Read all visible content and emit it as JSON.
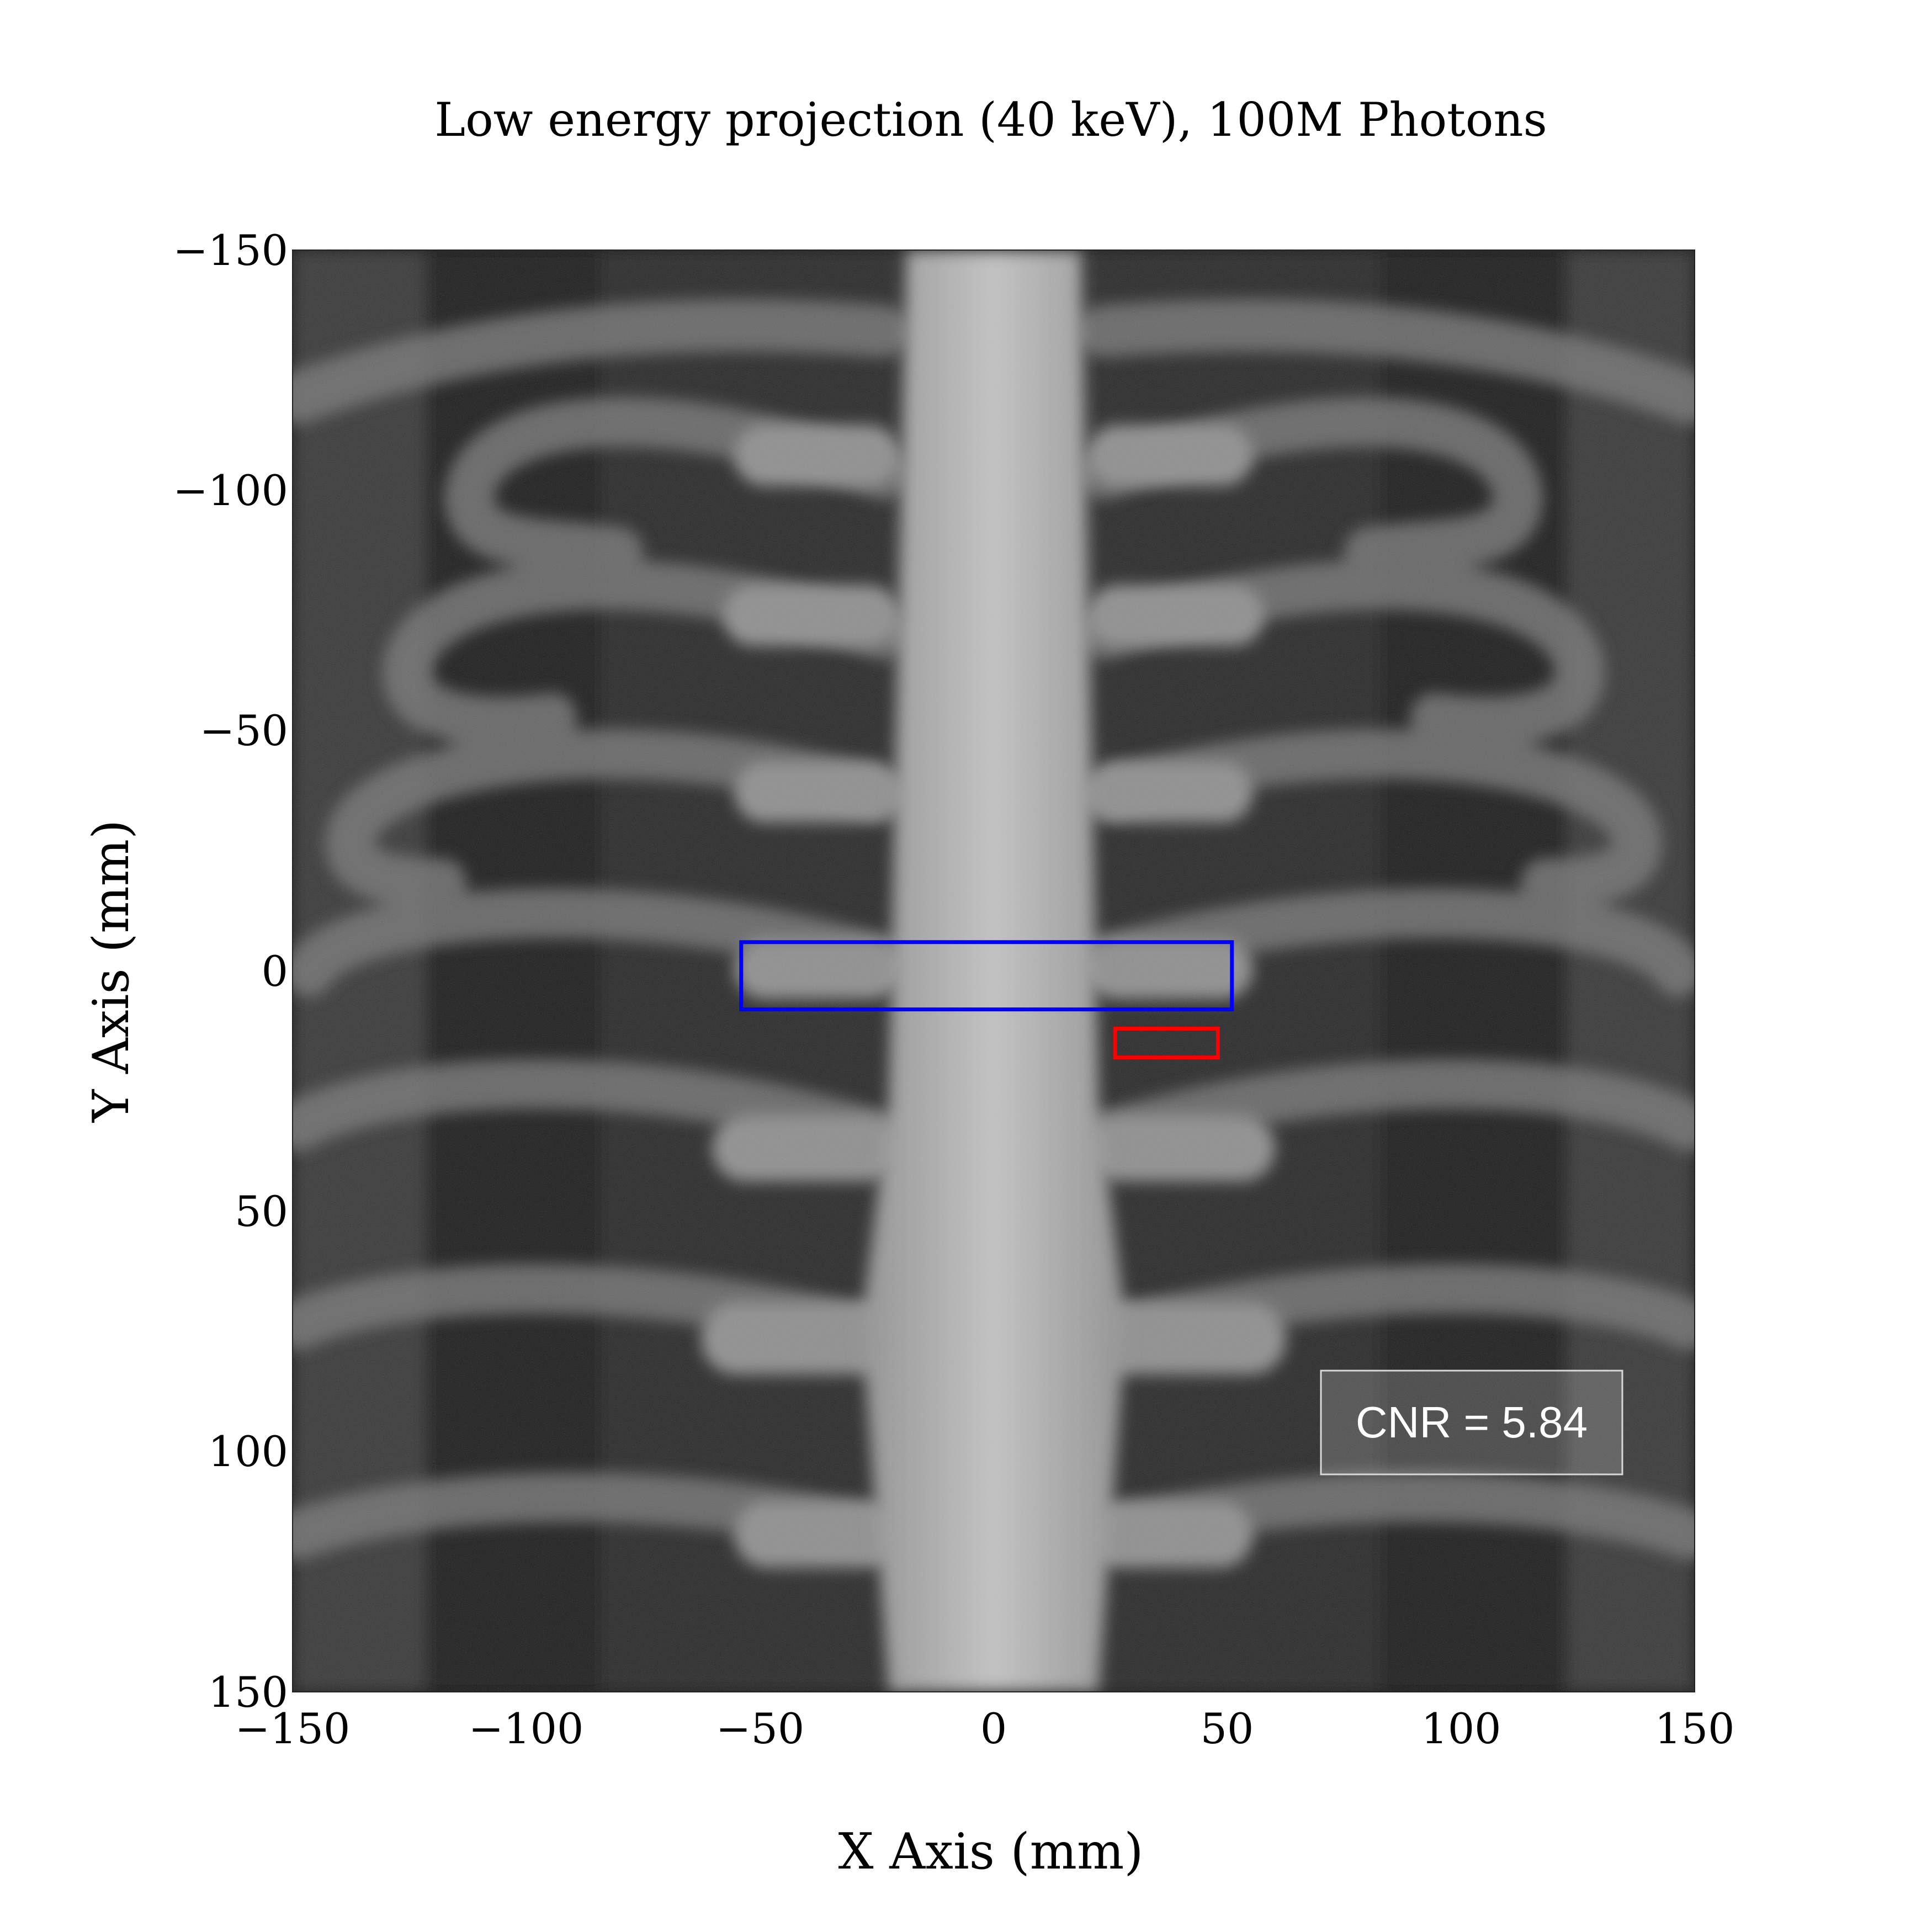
{
  "title": "Low energy projection (40 keV), 100M Photons",
  "xlabel": "X Axis (mm)",
  "ylabel": "Y Axis (mm)",
  "x_ticks": [
    "−150",
    "−100",
    "−50",
    "0",
    "50",
    "100",
    "150"
  ],
  "y_ticks": [
    "−150",
    "−100",
    "−50",
    "0",
    "50",
    "100",
    "150"
  ],
  "x_range_mm": [
    -150,
    150
  ],
  "y_range_mm": [
    -150,
    150
  ],
  "annotation": {
    "text": "CNR = 5.84"
  },
  "regions": [
    {
      "name": "signal-roi",
      "color": "#0000ff",
      "x_mm": [
        -54,
        51
      ],
      "y_mm": [
        -6,
        8
      ]
    },
    {
      "name": "background-roi",
      "color": "#ff0000",
      "x_mm": [
        26,
        48
      ],
      "y_mm": [
        12,
        18
      ]
    }
  ],
  "colors": {
    "image_background": "#111111",
    "bone": "#9a9a9a",
    "spine": "#b4b4b4"
  }
}
